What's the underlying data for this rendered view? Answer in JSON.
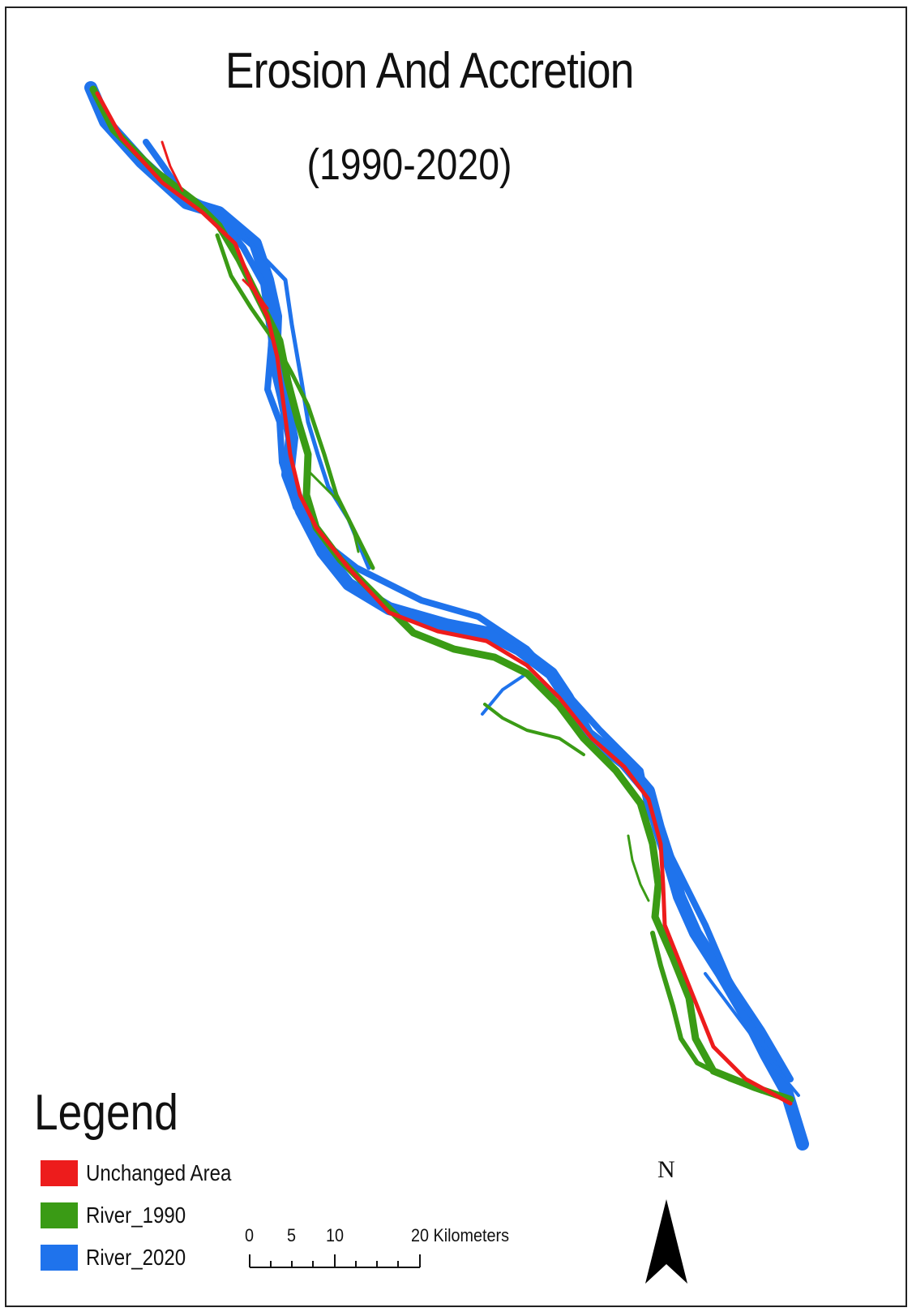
{
  "map": {
    "title": "Erosion And Accretion",
    "subtitle": "(1990-2020)",
    "legend": {
      "title": "Legend",
      "items": [
        {
          "label": "Unchanged Area",
          "color": "#ed1c1c"
        },
        {
          "label": "River_1990",
          "color": "#3a9b15"
        },
        {
          "label": "River_2020",
          "color": "#1f73ec"
        }
      ]
    },
    "scale_bar": {
      "tick_labels": [
        "0",
        "5",
        "10",
        "20 Kilometers"
      ]
    },
    "north_arrow": {
      "label": "N",
      "icon": "north-arrow-icon"
    },
    "layer_colors": {
      "unchanged": "#ed1c1c",
      "river_1990": "#3a9b15",
      "river_2020": "#1f73ec"
    }
  }
}
